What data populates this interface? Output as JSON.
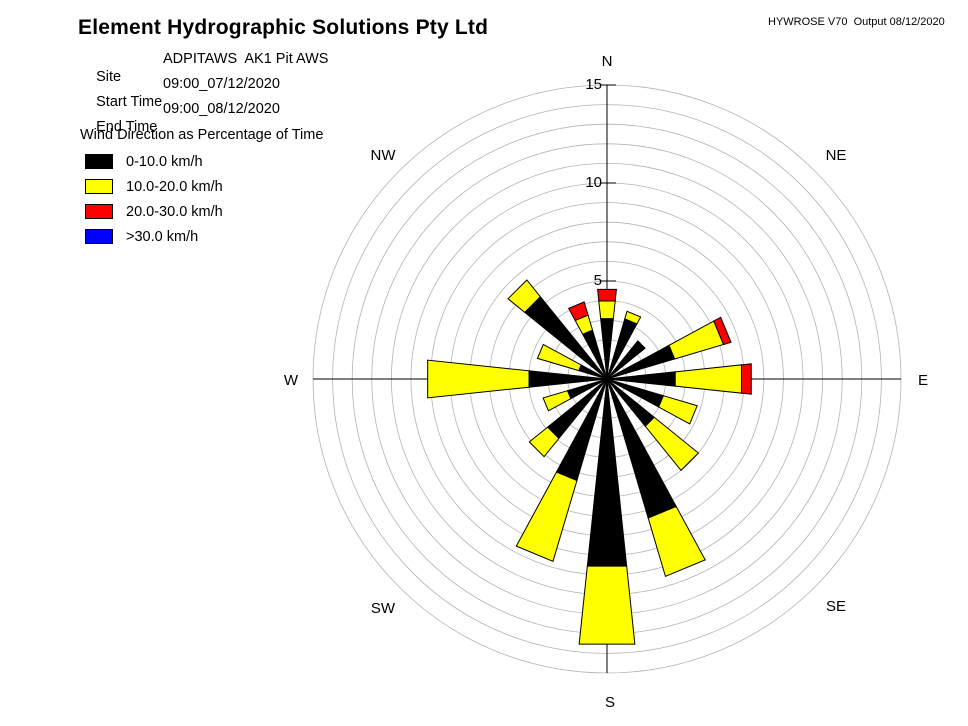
{
  "header": {
    "title": "Element Hydrographic Solutions Pty Ltd",
    "meta": "HYWROSE V70  Output 08/12/2020"
  },
  "info": {
    "site_label": "Site",
    "site_value": "ADPITAWS  AK1 Pit AWS",
    "start_label": "Start Time",
    "start_value": "09:00_07/12/2020",
    "end_label": "End Time",
    "end_value": "09:00_08/12/2020",
    "subtitle": "Wind Direction as Percentage of Time"
  },
  "legend": {
    "items": [
      {
        "label": "0-10.0 km/h",
        "color": "#000000"
      },
      {
        "label": "10.0-20.0 km/h",
        "color": "#ffff00"
      },
      {
        "label": "20.0-30.0 km/h",
        "color": "#ff0000"
      },
      {
        "label": ">30.0 km/h",
        "color": "#0000ff"
      }
    ]
  },
  "chart_data": {
    "type": "wind-rose",
    "title": "Wind Direction as Percentage of Time",
    "value_unit": "percent_of_time",
    "directions": [
      "N",
      "NNE",
      "NE",
      "ENE",
      "E",
      "ESE",
      "SE",
      "SSE",
      "S",
      "SSW",
      "SW",
      "WSW",
      "W",
      "WNW",
      "NW",
      "NNW"
    ],
    "series": [
      {
        "name": "0-10.0 km/h",
        "color": "#000000",
        "values": [
          3.1,
          3.2,
          2.5,
          3.6,
          3.5,
          3.0,
          3.1,
          7.4,
          9.6,
          5.4,
          3.9,
          2.1,
          4.0,
          1.5,
          5.4,
          2.6
        ]
      },
      {
        "name": "10.0-20.0 km/h",
        "color": "#ffff00",
        "values": [
          0.9,
          0.4,
          0.0,
          2.6,
          3.4,
          1.8,
          2.9,
          3.1,
          4.0,
          4.3,
          1.2,
          1.3,
          5.2,
          2.2,
          1.1,
          0.8
        ]
      },
      {
        "name": "20.0-30.0 km/h",
        "color": "#ff0000",
        "values": [
          0.6,
          0.0,
          0.0,
          0.4,
          0.5,
          0.0,
          0.0,
          0.0,
          0.0,
          0.0,
          0.0,
          0.0,
          0.0,
          0.0,
          0.0,
          0.7
        ]
      },
      {
        "name": ">30.0 km/h",
        "color": "#0000ff",
        "values": [
          0.0,
          0.0,
          0.0,
          0.0,
          0.0,
          0.0,
          0.0,
          0.0,
          0.0,
          0.0,
          0.0,
          0.0,
          0.0,
          0.0,
          0.0,
          0.0
        ]
      }
    ],
    "radial_axis": {
      "max": 15,
      "grid_step": 1,
      "ticks": [
        "5",
        "10",
        "15"
      ]
    },
    "compass_labels": {
      "n": "N",
      "ne": "NE",
      "e": "E",
      "se": "SE",
      "s": "S",
      "sw": "SW",
      "w": "W",
      "nw": "NW"
    },
    "grid_color": "#b3b3b3",
    "axis_color": "#000000"
  }
}
